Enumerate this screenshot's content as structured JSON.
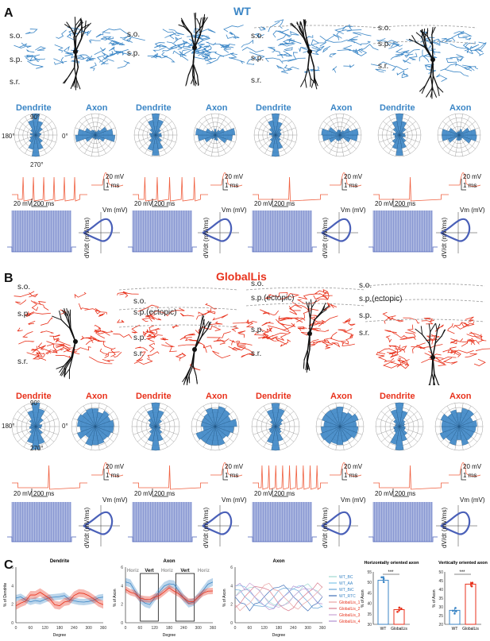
{
  "panels": {
    "a": "A",
    "b": "B",
    "c": "C"
  },
  "groups": {
    "wt": "WT",
    "globallis": "GlobalLis"
  },
  "colors": {
    "wt": "#3b86c6",
    "globallis": "#e8321c",
    "dendrite": "#111111",
    "trace": "#f06040",
    "vtrace": "#4a60b8"
  },
  "layers_wt": [
    {
      "labels": [
        "s.o.",
        "s.p.",
        "s.r."
      ]
    },
    {
      "labels": [
        "s.o.",
        "s.p."
      ]
    },
    {
      "labels": [
        "s.o.",
        "s.p.",
        "s.r."
      ]
    },
    {
      "labels": [
        "s.o.",
        "s.p.",
        "s.r."
      ]
    }
  ],
  "layers_gl": [
    {
      "labels": [
        "s.o.",
        "s.p.",
        "s.r."
      ]
    },
    {
      "labels": [
        "s.o.",
        "s.p.(ectopic)",
        "s.p.",
        "s.r."
      ]
    },
    {
      "labels": [
        "s.o.",
        "s.p.(ectopic)",
        "s.p.",
        "s.r."
      ]
    },
    {
      "labels": [
        "s.o.",
        "s.p.(ectopic)",
        "s.p.",
        "s.r."
      ]
    }
  ],
  "rose": {
    "dendrite": "Dendrite",
    "axon": "Axon",
    "deg90": "90°",
    "deg180": "180°",
    "deg0": "0°",
    "deg270": "270°"
  },
  "scalebars": {
    "v": "20 mV",
    "t_long": "200 ms",
    "t_short": "1 ms"
  },
  "phase": {
    "vm": "Vm (mV)",
    "dvdt": "dV/dt (mV/ms)"
  },
  "panel_c": {
    "titles": [
      "Dendrite",
      "Axon",
      "Axon"
    ],
    "ylabels": [
      "% of Dendrite",
      "% of Axon",
      "% of Axon"
    ],
    "xlabel": "Degree",
    "orient": [
      "Horiz",
      "Vert",
      "Horiz",
      "Vert",
      "Horiz"
    ],
    "legend": [
      "WT_BC",
      "WT_AA",
      "WT_BiC",
      "WT_RTC",
      "GlobalLis_1",
      "GlobalLis_2",
      "GlobalLis_3",
      "GlobalLis_4"
    ],
    "legend_colors": [
      "#9fd8d0",
      "#7fc6e8",
      "#6aa8d8",
      "#3f6fb8",
      "#e9a3a3",
      "#d97d8e",
      "#c9a3d6",
      "#b08fd0"
    ],
    "bar1": {
      "title": "Horizontally oriented axon",
      "ylabel": "% of Axon",
      "sig": "***",
      "categories": [
        "WT",
        "GlobalLis"
      ],
      "values": [
        51,
        37
      ],
      "ylim": [
        30,
        55
      ]
    },
    "bar2": {
      "title": "Vertically oriented axon",
      "ylabel": "% of Axon",
      "sig": "***",
      "categories": [
        "WT",
        "GlobalLis"
      ],
      "values": [
        28,
        43
      ],
      "ylim": [
        20,
        50
      ]
    }
  },
  "chart_data": [
    {
      "type": "bar",
      "title": "Horizontally oriented axon",
      "ylabel": "% of Axon",
      "categories": [
        "WT",
        "GlobalLis"
      ],
      "values": [
        51,
        37
      ],
      "ylim": [
        30,
        55
      ]
    },
    {
      "type": "bar",
      "title": "Vertically oriented axon",
      "ylabel": "% of Axon",
      "categories": [
        "WT",
        "GlobalLis"
      ],
      "values": [
        28,
        43
      ],
      "ylim": [
        20,
        50
      ]
    }
  ]
}
